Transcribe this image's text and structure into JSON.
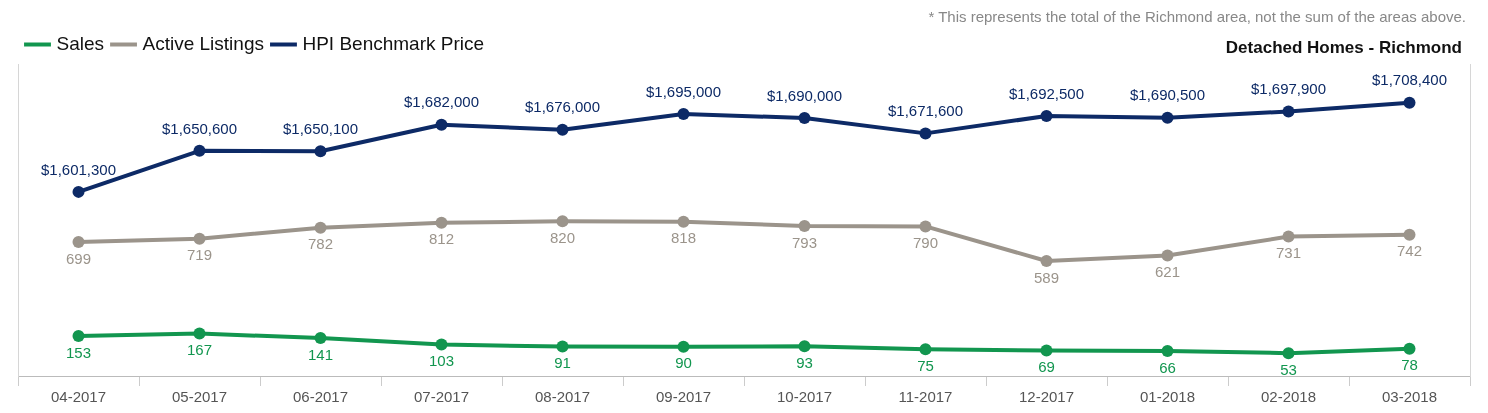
{
  "chart_data": {
    "type": "line",
    "title": "Detached Homes - Richmond",
    "annotations": [
      "* This represents the total of the Richmond area, not the sum of the areas above."
    ],
    "categories": [
      "04-2017",
      "05-2017",
      "06-2017",
      "07-2017",
      "08-2017",
      "09-2017",
      "10-2017",
      "11-2017",
      "12-2017",
      "01-2018",
      "02-2018",
      "03-2018"
    ],
    "series": [
      {
        "name": "Sales",
        "color": "#12964f",
        "axis": "y",
        "values": [
          153,
          167,
          141,
          103,
          91,
          90,
          93,
          75,
          69,
          66,
          53,
          78
        ],
        "value_labels": [
          "153",
          "167",
          "141",
          "103",
          "91",
          "90",
          "93",
          "75",
          "69",
          "66",
          "53",
          "78"
        ]
      },
      {
        "name": "Active Listings",
        "color": "#9b948b",
        "axis": "y",
        "values": [
          699,
          719,
          782,
          812,
          820,
          818,
          793,
          790,
          589,
          621,
          731,
          742
        ],
        "value_labels": [
          "699",
          "719",
          "782",
          "812",
          "820",
          "818",
          "793",
          "790",
          "589",
          "621",
          "731",
          "742"
        ]
      },
      {
        "name": "HPI Benchmark Price",
        "color": "#0d2a66",
        "axis": "y2",
        "values": [
          1601300,
          1650600,
          1650100,
          1682000,
          1676000,
          1695000,
          1690000,
          1671600,
          1692500,
          1690500,
          1697900,
          1708400
        ],
        "value_labels": [
          "$1,601,300",
          "$1,650,600",
          "$1,650,100",
          "$1,682,000",
          "$1,676,000",
          "$1,695,000",
          "$1,690,000",
          "$1,671,600",
          "$1,692,500",
          "$1,690,500",
          "$1,697,900",
          "$1,708,400"
        ]
      }
    ],
    "ylim": [
      -80,
      1735
    ],
    "y2lim": [
      1380000,
      1755000
    ],
    "tick_labels": "x",
    "legend": "top left",
    "marker": "circle",
    "line_style": "solid",
    "grid": false
  }
}
